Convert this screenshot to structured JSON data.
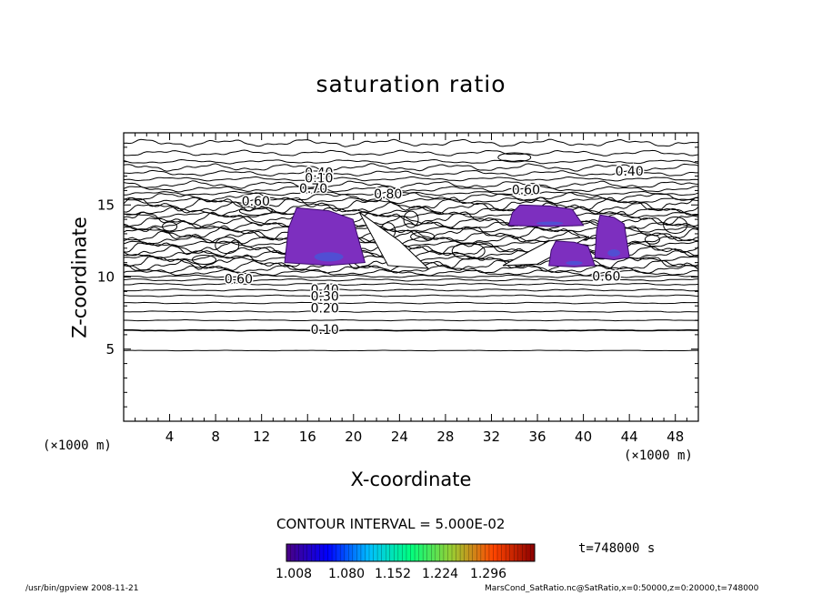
{
  "chart_data": {
    "type": "contour",
    "title": "saturation ratio",
    "xlabel": "X-coordinate",
    "ylabel": "Z-coordinate",
    "x_unit": "(×1000 m)",
    "y_unit": "(×1000 m)",
    "xlim": [
      0,
      50
    ],
    "ylim": [
      0,
      20
    ],
    "x_ticks": [
      4,
      8,
      12,
      16,
      20,
      24,
      28,
      32,
      36,
      40,
      44,
      48
    ],
    "y_ticks": [
      5,
      10,
      15
    ],
    "contour_interval_text": "CONTOUR INTERVAL = 5.000E-02",
    "time_text": "t=748000 s",
    "contour_labels": [
      {
        "text": "0.40",
        "x": 17.0,
        "z": 17.2
      },
      {
        "text": "0.10",
        "x": 17.0,
        "z": 16.8
      },
      {
        "text": "0.70",
        "x": 16.5,
        "z": 16.1
      },
      {
        "text": "0.80",
        "x": 23.0,
        "z": 15.7
      },
      {
        "text": "0.40",
        "x": 44.0,
        "z": 17.3
      },
      {
        "text": "0.60",
        "x": 35.0,
        "z": 16.0
      },
      {
        "text": "0.60",
        "x": 11.5,
        "z": 15.2
      },
      {
        "text": "0.60",
        "x": 10.0,
        "z": 9.8
      },
      {
        "text": "0.40",
        "x": 17.5,
        "z": 9.1
      },
      {
        "text": "0.30",
        "x": 17.5,
        "z": 8.6
      },
      {
        "text": "0.20",
        "x": 17.5,
        "z": 7.8
      },
      {
        "text": "0.10",
        "x": 17.5,
        "z": 6.3
      },
      {
        "text": "0.60",
        "x": 42.0,
        "z": 10.0
      }
    ],
    "colorbar": {
      "ticks": [
        "1.008",
        "1.080",
        "1.152",
        "1.224",
        "1.296"
      ],
      "colors": [
        "#4b0082",
        "#0000ff",
        "#00bfff",
        "#00ff7f",
        "#9acd32",
        "#ff4500",
        "#8b0000"
      ]
    },
    "supersaturated_regions": [
      {
        "x_range": [
          14,
          21
        ],
        "z_range": [
          10.8,
          14.8
        ]
      },
      {
        "x_range": [
          33.5,
          40
        ],
        "z_range": [
          13.5,
          15.0
        ]
      },
      {
        "x_range": [
          37,
          41
        ],
        "z_range": [
          10.7,
          12.5
        ]
      },
      {
        "x_range": [
          41,
          44
        ],
        "z_range": [
          11.2,
          14.3
        ]
      }
    ]
  },
  "footer": {
    "left": "/usr/bin/gpview   2008-11-21",
    "right": "MarsCond_SatRatio.nc@SatRatio,x=0:50000,z=0:20000,t=748000"
  }
}
